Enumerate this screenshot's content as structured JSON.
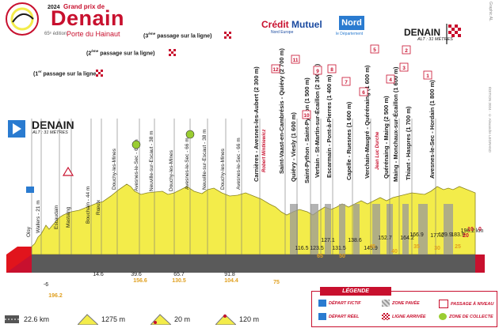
{
  "header": {
    "brand_small": "Grand prix de",
    "brand_big": "Denain",
    "brand_year": "2024",
    "brand_sub": "Porte du Hainaut",
    "brand_edition": "65ᵉ édition"
  },
  "sponsors": {
    "credit_mutuel": "Crédit",
    "credit_mutuel_b": "Mutuel",
    "credit_mutuel_sub": "Nord Europe",
    "nord": "Nord",
    "nord_sub": "le Département"
  },
  "start": {
    "name": "DENAIN",
    "alt": "ALT : 31 MÈTRES"
  },
  "finish": {
    "name": "DENAIN",
    "alt": "ALT : 31 MÈTRES"
  },
  "passages": [
    {
      "num": "1",
      "sup": "er",
      "text": " passage sur la ligne)"
    },
    {
      "num": "2",
      "sup": "ème",
      "text": " passage sur la ligne)"
    },
    {
      "num": "3",
      "sup": "ème",
      "text": " passage sur la ligne)"
    }
  ],
  "credits": {
    "graphic": "Graphic AL",
    "edition": "ÉDITION 2024 · © Alexandre LEGRAND"
  },
  "places": [
    "Oisy",
    "Wallers - 21 m",
    "Escaudain",
    "Mastaing",
    "Bouchain - 44 m",
    "Rœulx",
    "Douchy-les-Mines",
    "Avesnes-le-Sec - 66 m",
    "Neuville-sur-Escaut - 38 m",
    "Douchy-les-Mines",
    "Avesnes-le-Sec - 66 m",
    "Neuville-sur-Escaut - 38 m",
    "Douchy-les-Mines",
    "Avesnes-le-Sec - 66 m",
    "Carnières - Avesnes-les-Aubert (2 300 m)",
    "Saint-Vaast-en-Cambrésis - Quiévy (2 700 m)",
    "Quiévy - Viesly (1 600 m)",
    "Saint-Python - Saint-Python (1 500 m)",
    "Vertain - St-Martin-sur-Écaillon (2 300 m)",
    "Escarmain - Pont-à-Pierres (1 400 m)",
    "Capelle - Ruesnes (1 600 m)",
    "Verchain-Maugré - Quérénaing (1 600 m)",
    "Quérénaing - Maing (2 500 m)",
    "Maing - Monchaux-sur-Écaillon (1 600 m)",
    "Thiant - Haspres (1 700 m)",
    "Avesnes-le-Sec - Hordain (1 800 m)"
  ],
  "special_labels": [
    "Robert Mintkiewicz",
    "Jean Luc Durche"
  ],
  "sector_numbers": [
    "12",
    "11",
    "10",
    "9",
    "8",
    "7",
    "6",
    "5",
    "4",
    "3",
    "2",
    "1"
  ],
  "km_marks": [
    "-6",
    "14.6",
    "39.6",
    "65.7",
    "91.8",
    "116.5",
    "123.5",
    "127.1",
    "131.5",
    "138.6",
    "145.9",
    "152.7",
    "164.2",
    "166.9",
    "177.0",
    "179.9",
    "183.9",
    "196.2 km"
  ],
  "km_remaining": [
    "196.2",
    "156.6",
    "130.5",
    "104.4",
    "75",
    "65",
    "50",
    "45",
    "40",
    "35",
    "30",
    "25",
    "20",
    "10",
    "0"
  ],
  "legend": {
    "title": "LÉGENDE",
    "items": [
      "DÉPART FICTIF",
      "ZONE PAVÉE",
      "PASSAGE À NIVEAU",
      "DÉPART RÉEL",
      "LIGNE ARRIVÉE",
      "ZONE DE COLLECTE"
    ]
  },
  "stats": [
    "22.6 km",
    "1275 m",
    "20 m",
    "120 m"
  ],
  "colors": {
    "red": "#c8102e",
    "yellow": "#f3ec4a",
    "blue": "#2a7bd0",
    "gray": "#5a5a5a",
    "orange": "#e08a1e",
    "green": "#9acd32"
  }
}
